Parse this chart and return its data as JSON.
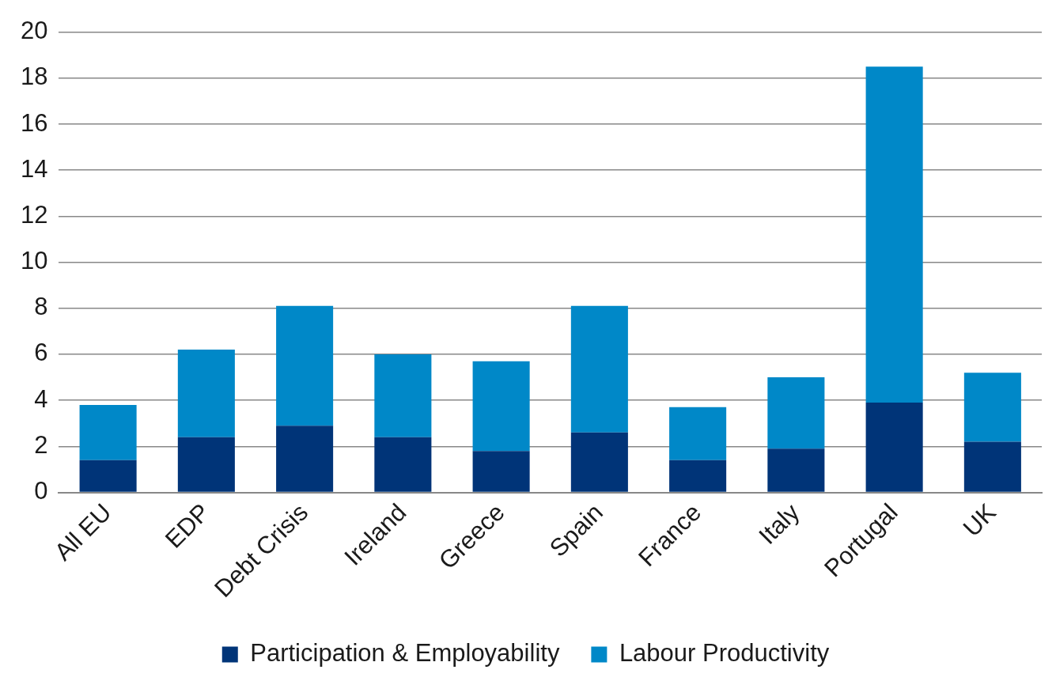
{
  "chart_data": {
    "type": "bar",
    "stacked": true,
    "categories": [
      "All EU",
      "EDP",
      "Debt Crisis",
      "Ireland",
      "Greece",
      "Spain",
      "France",
      "Italy",
      "Portugal",
      "UK"
    ],
    "series": [
      {
        "name": "Participation & Employability",
        "color": "#003478",
        "values": [
          1.4,
          2.4,
          2.9,
          2.4,
          1.8,
          2.6,
          1.4,
          1.9,
          3.9,
          2.2
        ]
      },
      {
        "name": "Labour Productivity",
        "color": "#0088c8",
        "values": [
          2.4,
          3.8,
          5.2,
          3.6,
          3.9,
          5.5,
          2.3,
          3.1,
          14.6,
          3.0
        ]
      }
    ],
    "ylim": [
      0,
      20
    ],
    "yticks": [
      0,
      2,
      4,
      6,
      8,
      10,
      12,
      14,
      16,
      18,
      20
    ],
    "grid": "y",
    "legend": "bottom"
  }
}
